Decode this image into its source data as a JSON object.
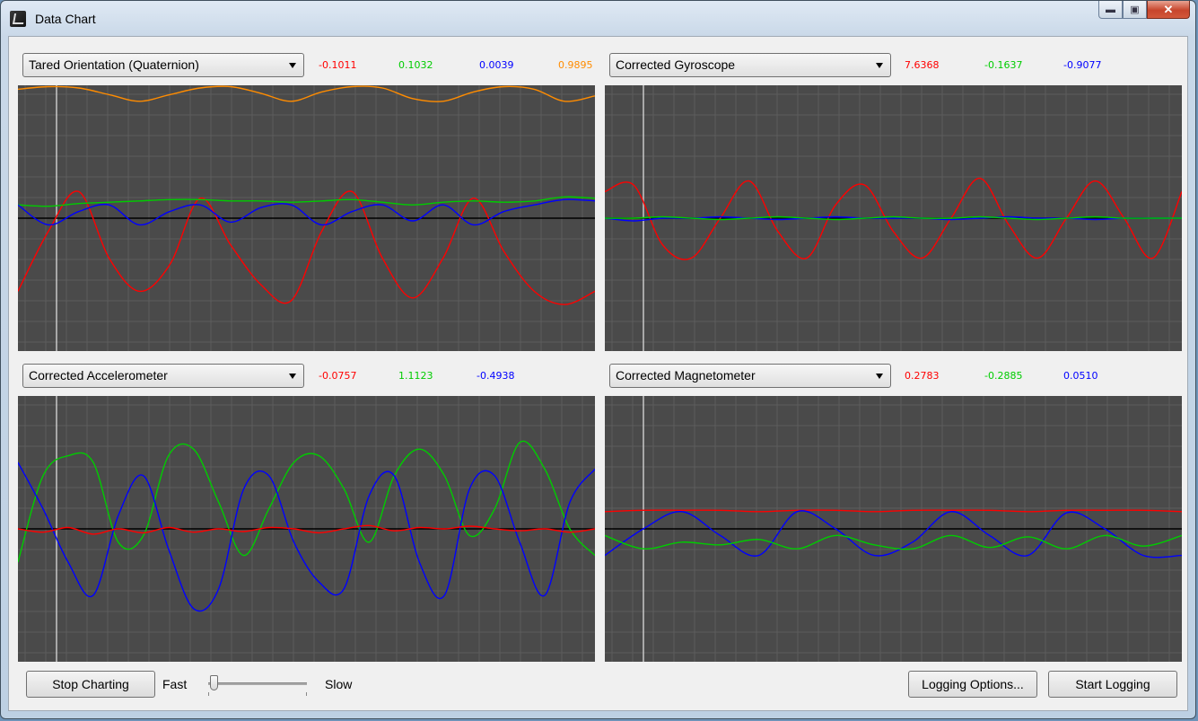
{
  "window": {
    "title": "Data Chart",
    "icon": "app-icon"
  },
  "titlebar_buttons": [
    "minimize-icon",
    "maximize-icon",
    "close-icon"
  ],
  "colors": {
    "x": "#ff0000",
    "y": "#00cc00",
    "z": "#0000ff",
    "w": "#ff8c00",
    "plot_bg": "#4a4a4a",
    "grid": "#5c5c5c",
    "cursor": "#c8c8c8"
  },
  "panels": [
    {
      "id": "p1",
      "selection": "Tared Orientation (Quaternion)",
      "values": [
        {
          "text": "-0.1011",
          "color": "#ff0000"
        },
        {
          "text": "0.1032",
          "color": "#00cc00"
        },
        {
          "text": "0.0039",
          "color": "#0000ff"
        },
        {
          "text": "0.9895",
          "color": "#ff8c00"
        }
      ]
    },
    {
      "id": "p2",
      "selection": "Corrected Gyroscope",
      "values": [
        {
          "text": "7.6368",
          "color": "#ff0000"
        },
        {
          "text": "-0.1637",
          "color": "#00cc00"
        },
        {
          "text": "-0.9077",
          "color": "#0000ff"
        }
      ]
    },
    {
      "id": "p3",
      "selection": "Corrected Accelerometer",
      "values": [
        {
          "text": "-0.0757",
          "color": "#ff0000"
        },
        {
          "text": "1.1123",
          "color": "#00cc00"
        },
        {
          "text": "-0.4938",
          "color": "#0000ff"
        }
      ]
    },
    {
      "id": "p4",
      "selection": "Corrected Magnetometer",
      "values": [
        {
          "text": "0.2783",
          "color": "#ff0000"
        },
        {
          "text": "-0.2885",
          "color": "#00cc00"
        },
        {
          "text": "0.0510",
          "color": "#0000ff"
        }
      ]
    }
  ],
  "controls": {
    "stop_charting": "Stop Charting",
    "fast_label": "Fast",
    "slow_label": "Slow",
    "logging_options": "Logging Options...",
    "start_logging": "Start Logging",
    "speed_level": 0.05
  },
  "chart_data": [
    {
      "type": "line",
      "ylim": [
        -1,
        1
      ],
      "grid": true,
      "series": [
        {
          "color": "#ff8c00",
          "values": [
            0.97,
            0.99,
            0.98,
            0.93,
            0.88,
            0.93,
            0.98,
            0.99,
            0.94,
            0.88,
            0.95,
            0.99,
            0.98,
            0.9,
            0.88,
            0.95,
            0.99,
            0.97,
            0.88,
            0.92
          ]
        },
        {
          "color": "#ff0000",
          "values": [
            -0.55,
            -0.1,
            0.2,
            -0.3,
            -0.55,
            -0.35,
            0.15,
            -0.2,
            -0.5,
            -0.62,
            -0.1,
            0.2,
            -0.3,
            -0.6,
            -0.3,
            0.15,
            -0.25,
            -0.55,
            -0.65,
            -0.55
          ]
        },
        {
          "color": "#00cc00",
          "values": [
            0.1,
            0.09,
            0.11,
            0.12,
            0.13,
            0.14,
            0.14,
            0.13,
            0.13,
            0.12,
            0.13,
            0.14,
            0.12,
            0.1,
            0.12,
            0.13,
            0.12,
            0.13,
            0.16,
            0.15
          ]
        },
        {
          "color": "#0000ff",
          "values": [
            0.1,
            -0.05,
            0.05,
            0.1,
            -0.05,
            0.05,
            0.1,
            -0.03,
            0.08,
            0.1,
            -0.05,
            0.05,
            0.1,
            -0.02,
            0.1,
            -0.05,
            0.05,
            0.1,
            0.14,
            0.13
          ]
        }
      ]
    },
    {
      "type": "line",
      "ylim": [
        -1,
        1
      ],
      "grid": true,
      "series": [
        {
          "color": "#ff0000",
          "values": [
            0.2,
            0.25,
            -0.2,
            -0.3,
            0.0,
            0.28,
            -0.1,
            -0.3,
            0.1,
            0.25,
            -0.1,
            -0.3,
            0.0,
            0.3,
            -0.05,
            -0.3,
            0.0,
            0.28,
            0.0,
            -0.3,
            0.2
          ]
        },
        {
          "color": "#0000ff",
          "values": [
            0.0,
            -0.02,
            0.0,
            0.0,
            0.01,
            0.0,
            -0.01,
            0.0,
            0.01,
            0.0,
            0.0,
            0.0,
            -0.01,
            0.0,
            0.01,
            0.0,
            0.0,
            -0.01,
            0.0,
            0.0,
            0.0
          ]
        },
        {
          "color": "#00cc00",
          "values": [
            0.0,
            0.0,
            0.01,
            0.0,
            -0.01,
            0.0,
            0.01,
            0.0,
            -0.01,
            0.0,
            0.01,
            0.0,
            0.0,
            0.01,
            0.0,
            -0.01,
            0.0,
            0.01,
            0.0,
            0.0,
            0.0
          ]
        }
      ]
    },
    {
      "type": "line",
      "ylim": [
        -2,
        2
      ],
      "grid": true,
      "series": [
        {
          "color": "#00cc00",
          "values": [
            -0.5,
            0.8,
            1.1,
            1.0,
            -0.2,
            -0.1,
            1.1,
            1.2,
            0.4,
            -0.4,
            0.3,
            1.0,
            1.1,
            0.6,
            -0.2,
            0.8,
            1.2,
            0.8,
            -0.1,
            0.3,
            1.3,
            0.9,
            0.0,
            -0.4
          ]
        },
        {
          "color": "#0000ff",
          "values": [
            1.0,
            0.3,
            -0.5,
            -1.0,
            0.2,
            0.8,
            -0.3,
            -1.2,
            -0.9,
            0.6,
            0.8,
            -0.2,
            -0.8,
            -0.9,
            0.5,
            0.8,
            -0.5,
            -1.0,
            0.6,
            0.8,
            -0.2,
            -1.0,
            0.4,
            0.9
          ]
        },
        {
          "color": "#ff0000",
          "values": [
            0.0,
            -0.05,
            0.02,
            -0.08,
            0.0,
            -0.06,
            0.02,
            -0.05,
            0.0,
            -0.04,
            0.02,
            0.0,
            -0.06,
            0.0,
            0.05,
            -0.03,
            0.02,
            0.0,
            0.04,
            0.0,
            -0.03,
            0.0,
            -0.05,
            0.0
          ]
        }
      ]
    },
    {
      "type": "line",
      "ylim": [
        -1,
        1
      ],
      "grid": true,
      "series": [
        {
          "color": "#ff0000",
          "values": [
            0.13,
            0.14,
            0.14,
            0.14,
            0.13,
            0.14,
            0.14,
            0.13,
            0.14,
            0.14,
            0.14,
            0.13,
            0.14,
            0.14,
            0.14,
            0.13
          ]
        },
        {
          "color": "#0000ff",
          "values": [
            -0.2,
            0.0,
            0.13,
            -0.05,
            -0.2,
            0.13,
            0.0,
            -0.2,
            -0.1,
            0.13,
            -0.05,
            -0.2,
            0.12,
            0.0,
            -0.2,
            -0.2
          ]
        },
        {
          "color": "#00cc00",
          "values": [
            -0.05,
            -0.15,
            -0.1,
            -0.12,
            -0.08,
            -0.15,
            -0.05,
            -0.12,
            -0.15,
            -0.05,
            -0.14,
            -0.06,
            -0.15,
            -0.05,
            -0.13,
            -0.05
          ]
        }
      ]
    }
  ]
}
